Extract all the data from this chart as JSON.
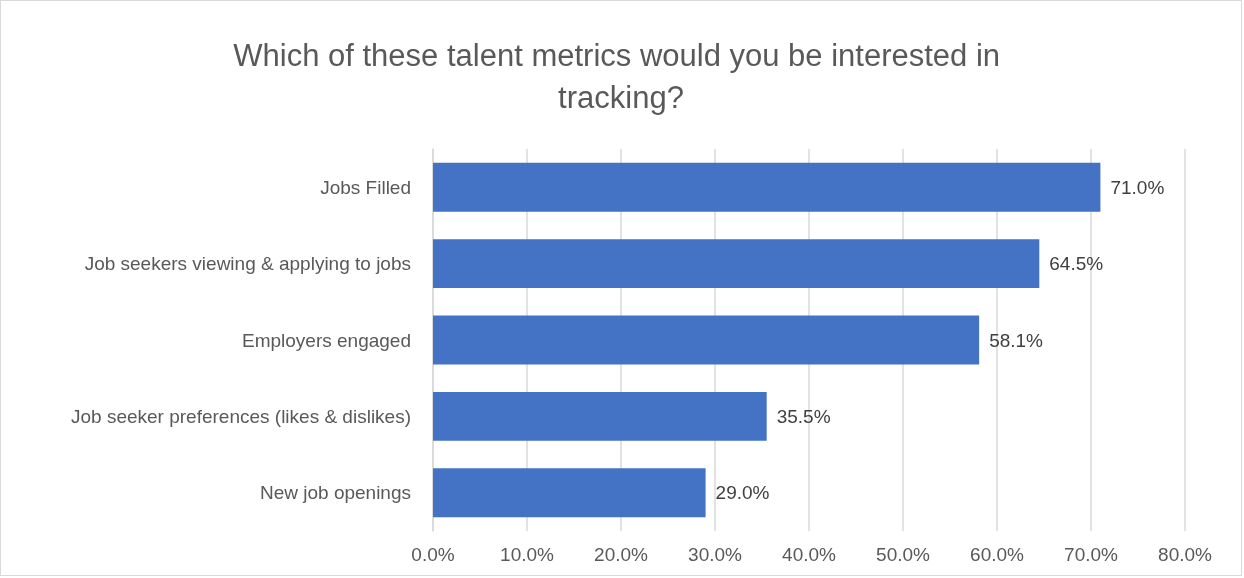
{
  "chart_data": {
    "type": "bar",
    "orientation": "horizontal",
    "title": "Which of these talent metrics would you be interested in tracking?",
    "categories": [
      "Jobs Filled",
      "Job seekers viewing & applying to jobs",
      "Employers engaged",
      "Job seeker preferences (likes & dislikes)",
      "New job openings"
    ],
    "values": [
      71.0,
      64.5,
      58.1,
      35.5,
      29.0
    ],
    "value_labels": [
      "71.0%",
      "64.5%",
      "58.1%",
      "35.5%",
      "29.0%"
    ],
    "color": "#4472c4",
    "xlim": [
      0,
      80
    ],
    "xticks": [
      {
        "value": 0,
        "label": "0.0%"
      },
      {
        "value": 10,
        "label": "10.0%"
      },
      {
        "value": 20,
        "label": "20.0%"
      },
      {
        "value": 30,
        "label": "30.0%"
      },
      {
        "value": 40,
        "label": "40.0%"
      },
      {
        "value": 50,
        "label": "50.0%"
      },
      {
        "value": 60,
        "label": "60.0%"
      },
      {
        "value": 70,
        "label": "70.0%"
      },
      {
        "value": 80,
        "label": "80.0%"
      }
    ],
    "grid": "x"
  }
}
